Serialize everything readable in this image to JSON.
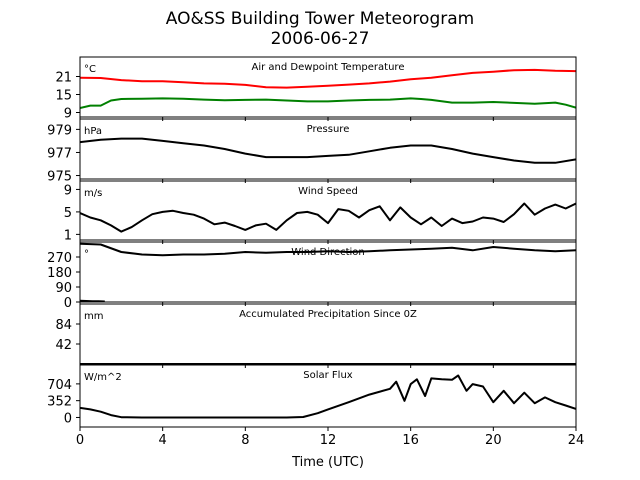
{
  "title_line1": "AO&SS Building Tower Meteorogram",
  "title_line2": "2006-06-27",
  "xlabel": "Time (UTC)",
  "xticks": [
    0,
    4,
    8,
    12,
    16,
    20,
    24
  ],
  "chart_data": [
    {
      "type": "line",
      "title": "Air and Dewpoint Temperature",
      "unit": "°C",
      "ylim": [
        7.5,
        27.5
      ],
      "yticks": [
        9,
        15,
        21
      ],
      "series": [
        {
          "color": "#ff0000",
          "x": [
            0,
            1,
            2,
            3,
            4,
            5,
            6,
            7,
            8,
            9,
            10,
            11,
            12,
            13,
            14,
            15,
            16,
            17,
            18,
            19,
            20,
            21,
            22,
            23,
            24
          ],
          "y": [
            20.6,
            20.5,
            19.8,
            19.4,
            19.4,
            19.1,
            18.7,
            18.6,
            18.2,
            17.4,
            17.3,
            17.6,
            17.9,
            18.3,
            18.7,
            19.3,
            20.1,
            20.6,
            21.4,
            22.2,
            22.6,
            23.1,
            23.2,
            22.9,
            22.8
          ]
        },
        {
          "color": "#008000",
          "x": [
            0,
            0.5,
            1,
            1.5,
            2,
            3,
            4,
            5,
            6,
            7,
            8,
            9,
            10,
            11,
            12,
            13,
            14,
            15,
            16,
            16.5,
            17,
            18,
            19,
            20,
            21,
            22,
            23,
            23.5,
            24
          ],
          "y": [
            10.5,
            11.3,
            11.3,
            13.0,
            13.5,
            13.6,
            13.7,
            13.6,
            13.3,
            13.1,
            13.2,
            13.3,
            13.0,
            12.7,
            12.7,
            13.0,
            13.2,
            13.3,
            13.7,
            13.5,
            13.2,
            12.3,
            12.3,
            12.5,
            12.2,
            11.9,
            12.3,
            11.6,
            10.6
          ]
        }
      ]
    },
    {
      "type": "line",
      "title": "Pressure",
      "unit": "hPa",
      "ylim": [
        974.7,
        979.9
      ],
      "yticks": [
        975,
        977,
        979
      ],
      "series": [
        {
          "color": "#000000",
          "x": [
            0,
            1,
            2,
            3,
            4,
            5,
            6,
            7,
            8,
            9,
            10,
            11,
            12,
            13,
            14,
            15,
            16,
            17,
            18,
            19,
            20,
            21,
            22,
            23,
            24
          ],
          "y": [
            977.9,
            978.1,
            978.2,
            978.2,
            978.0,
            977.8,
            977.6,
            977.3,
            976.9,
            976.6,
            976.6,
            976.6,
            976.7,
            976.8,
            977.1,
            977.4,
            977.6,
            977.6,
            977.3,
            976.9,
            976.6,
            976.3,
            976.1,
            976.1,
            976.4
          ]
        }
      ]
    },
    {
      "type": "line",
      "title": "Wind Speed",
      "unit": "m/s",
      "ylim": [
        0,
        10.5
      ],
      "yticks": [
        1,
        5,
        9
      ],
      "series": [
        {
          "color": "#000000",
          "x": [
            0,
            0.5,
            1,
            1.5,
            2,
            2.5,
            3,
            3.5,
            4,
            4.5,
            5,
            5.5,
            6,
            6.5,
            7,
            7.5,
            8,
            8.5,
            9,
            9.5,
            10,
            10.5,
            11,
            11.5,
            12,
            12.5,
            13,
            13.5,
            14,
            14.5,
            15,
            15.5,
            16,
            16.5,
            17,
            17.5,
            18,
            18.5,
            19,
            19.5,
            20,
            20.5,
            21,
            21.5,
            22,
            22.5,
            23,
            23.5,
            24
          ],
          "y": [
            4.8,
            4.0,
            3.5,
            2.6,
            1.5,
            2.3,
            3.5,
            4.6,
            5.0,
            5.2,
            4.8,
            4.5,
            3.8,
            2.8,
            3.1,
            2.5,
            1.8,
            2.6,
            2.9,
            1.8,
            3.5,
            4.8,
            5.0,
            4.5,
            3.0,
            5.5,
            5.2,
            4.0,
            5.3,
            6.0,
            3.5,
            5.8,
            4.0,
            2.8,
            4.0,
            2.5,
            3.8,
            3.0,
            3.3,
            4.0,
            3.8,
            3.2,
            4.6,
            6.5,
            4.5,
            5.6,
            6.3,
            5.6,
            6.5
          ]
        }
      ]
    },
    {
      "type": "line",
      "title": "Wind Direction",
      "unit": "°",
      "ylim": [
        0,
        360
      ],
      "yticks": [
        0,
        90,
        180,
        270
      ],
      "series": [
        {
          "color": "#000000",
          "x": [
            0,
            1,
            2,
            3,
            4,
            5,
            6,
            7,
            8,
            9,
            10,
            11,
            12,
            13,
            14,
            15,
            16,
            17,
            18,
            19,
            20,
            21,
            22,
            23,
            24
          ],
          "y": [
            350,
            345,
            300,
            285,
            280,
            285,
            285,
            290,
            300,
            295,
            300,
            300,
            305,
            300,
            305,
            310,
            315,
            320,
            325,
            310,
            330,
            320,
            310,
            305,
            310
          ]
        },
        {
          "color": "#000000",
          "x": [
            0,
            0.3,
            0.6,
            0.9,
            1.2
          ],
          "y": [
            8,
            6,
            5,
            4,
            3
          ]
        }
      ]
    },
    {
      "type": "line",
      "title": "Accumulated Precipitation Since 0Z",
      "unit": "mm",
      "ylim": [
        0,
        126
      ],
      "yticks": [
        42,
        84
      ],
      "series": [
        {
          "color": "#000000",
          "x": [
            0,
            24
          ],
          "y": [
            0,
            0
          ]
        }
      ]
    },
    {
      "type": "line",
      "title": "Solar Flux",
      "unit": "W/m^2",
      "ylim": [
        -200,
        1100
      ],
      "yticks": [
        0,
        352,
        704
      ],
      "series": [
        {
          "color": "#000000",
          "x": [
            0,
            0.5,
            1,
            1.5,
            2,
            3,
            4,
            6,
            8,
            10,
            10.8,
            11.5,
            12,
            13,
            14,
            15,
            15.3,
            15.7,
            16,
            16.3,
            16.7,
            17,
            17.5,
            18,
            18.3,
            18.7,
            19,
            19.5,
            20,
            20.5,
            21,
            21.5,
            22,
            22.5,
            23,
            23.5,
            24
          ],
          "y": [
            200,
            170,
            120,
            50,
            5,
            0,
            0,
            0,
            0,
            0,
            10,
            90,
            170,
            320,
            480,
            600,
            750,
            350,
            700,
            800,
            450,
            820,
            800,
            790,
            880,
            560,
            700,
            650,
            320,
            560,
            300,
            520,
            300,
            420,
            320,
            250,
            180
          ]
        }
      ]
    }
  ]
}
